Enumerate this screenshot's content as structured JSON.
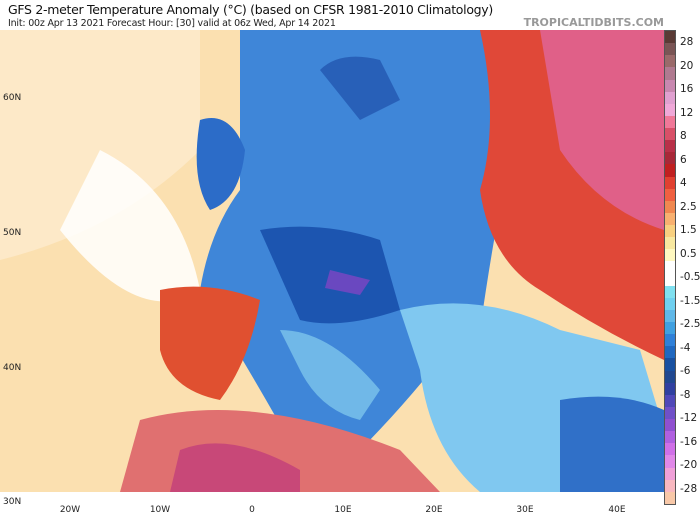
{
  "header": {
    "title": "GFS 2-meter Temperature Anomaly (°C) (based on CFSR 1981-2010 Climatology)",
    "subtitle": "Init: 00z Apr 13 2021   Forecast Hour: [30]   valid at 06z Wed, Apr 14 2021",
    "brand": "TROPICALTIDBITS.COM"
  },
  "axes": {
    "lat": [
      "60N",
      "50N",
      "40N",
      "30N"
    ],
    "lon": [
      "20W",
      "10W",
      "0",
      "10E",
      "20E",
      "30E",
      "40E"
    ]
  },
  "colorbar": {
    "labels": [
      "28",
      "20",
      "16",
      "12",
      "8",
      "6",
      "4",
      "2.5",
      "1.5",
      "0.5",
      "-0.5",
      "-1.5",
      "-2.5",
      "-4",
      "-6",
      "-8",
      "-12",
      "-16",
      "-20",
      "-28"
    ],
    "colors": [
      "#5a3a35",
      "#7a5555",
      "#9a6a6a",
      "#b07a90",
      "#c888b0",
      "#e0a0d0",
      "#f0a8d8",
      "#f07898",
      "#d85068",
      "#b83048",
      "#a82838",
      "#c02020",
      "#e04030",
      "#f06040",
      "#f08850",
      "#f8b070",
      "#f8d080",
      "#f8e8a0",
      "#fff8c0",
      "#ffffff",
      "#ffffff",
      "#80e0f0",
      "#70d0f0",
      "#60b8e8",
      "#40a0e0",
      "#3080d8",
      "#2068c0",
      "#1850a0",
      "#204890",
      "#3040a0",
      "#5048b8",
      "#7050c8",
      "#9050d0",
      "#b060e0",
      "#d070e8",
      "#e088e8",
      "#f0a0d8",
      "#f8b8c0",
      "#f8c8a8"
    ]
  }
}
